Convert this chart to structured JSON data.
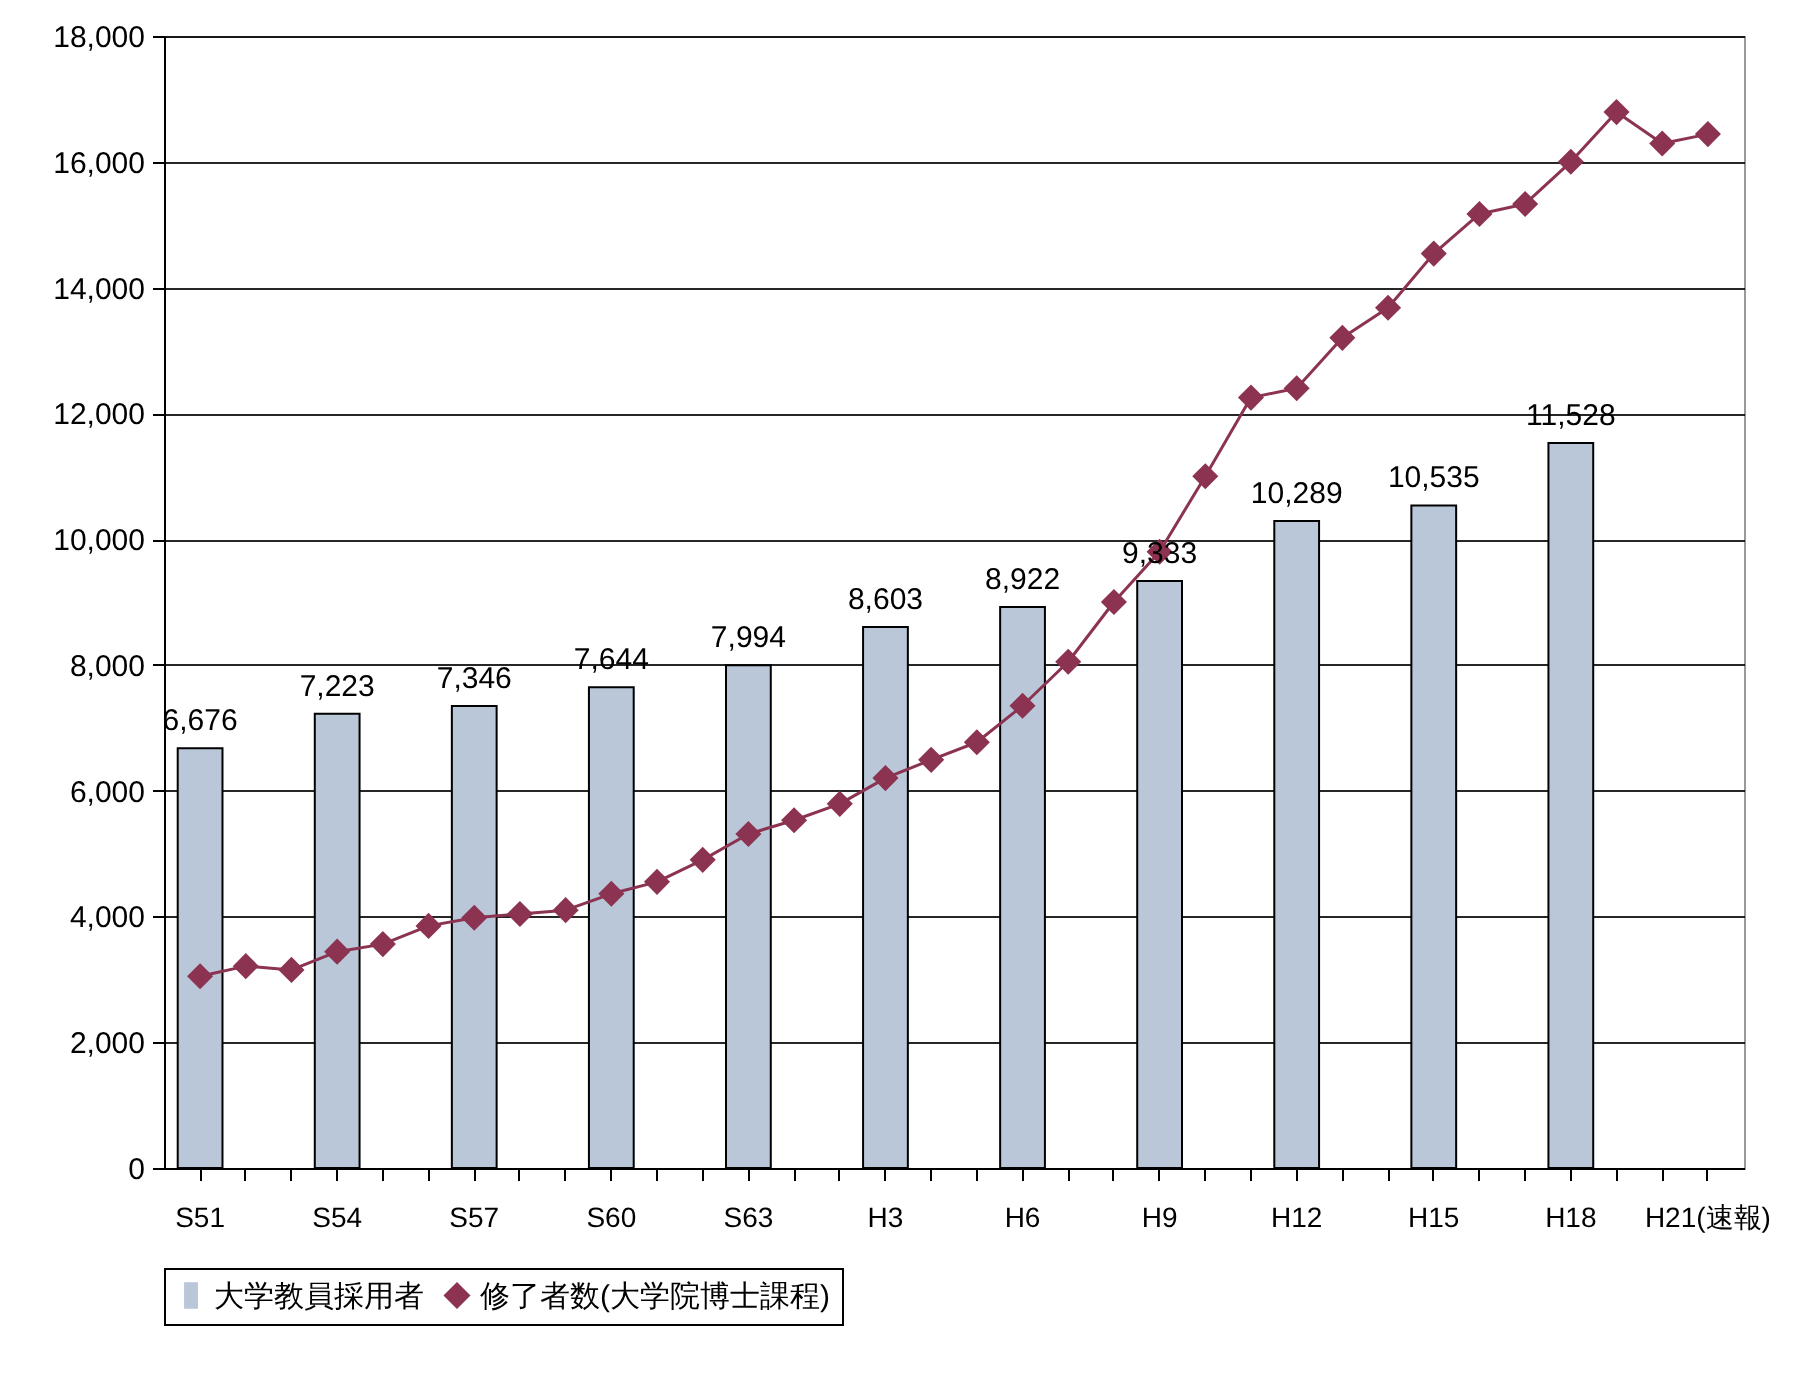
{
  "chart_data": {
    "type": "bar",
    "categories": [
      "S51",
      null,
      null,
      "S54",
      null,
      null,
      "S57",
      null,
      null,
      "S60",
      null,
      null,
      "S63",
      null,
      null,
      "H3",
      null,
      null,
      "H6",
      null,
      null,
      "H9",
      null,
      null,
      "H12",
      null,
      null,
      "H15",
      null,
      null,
      "H18",
      null,
      null,
      "H21(速報)"
    ],
    "series": [
      {
        "name": "大学教員採用者",
        "color": "#b9c7d9",
        "values": [
          6676,
          null,
          null,
          7223,
          null,
          null,
          7346,
          null,
          null,
          7644,
          null,
          null,
          7994,
          null,
          null,
          8603,
          null,
          null,
          8922,
          null,
          null,
          9333,
          null,
          null,
          10289,
          null,
          null,
          10535,
          null,
          null,
          11528,
          null,
          null,
          null
        ],
        "value_labels": [
          "6,676",
          null,
          null,
          "7,223",
          null,
          null,
          "7,346",
          null,
          null,
          "7,644",
          null,
          null,
          "7,994",
          null,
          null,
          "8,603",
          null,
          null,
          "8,922",
          null,
          null,
          "9,333",
          null,
          null,
          "10,289",
          null,
          null,
          "10,535",
          null,
          null,
          "11,528",
          null,
          null,
          null
        ]
      },
      {
        "name": "修了者数(大学院博士課程)",
        "type": "line",
        "color": "#8b3350",
        "values": [
          3050,
          3210,
          3150,
          3440,
          3560,
          3850,
          3980,
          4040,
          4100,
          4360,
          4550,
          4900,
          5310,
          5530,
          5790,
          6200,
          6490,
          6770,
          7350,
          8050,
          9000,
          9800,
          11000,
          12250,
          12400,
          13200,
          13680,
          14540,
          15170,
          15330,
          16000,
          16790,
          16290,
          16440
        ]
      }
    ],
    "ylim": [
      0,
      18000
    ],
    "yticks": [
      {
        "value": 0,
        "label": "0"
      },
      {
        "value": 2000,
        "label": "2,000"
      },
      {
        "value": 4000,
        "label": "4,000"
      },
      {
        "value": 6000,
        "label": "6,000"
      },
      {
        "value": 8000,
        "label": "8,000"
      },
      {
        "value": 10000,
        "label": "10,000"
      },
      {
        "value": 12000,
        "label": "12,000"
      },
      {
        "value": 14000,
        "label": "14,000"
      },
      {
        "value": 16000,
        "label": "16,000"
      },
      {
        "value": 18000,
        "label": "18,000"
      }
    ],
    "grid": "y",
    "legend": "bottom",
    "marker": "diamond"
  }
}
